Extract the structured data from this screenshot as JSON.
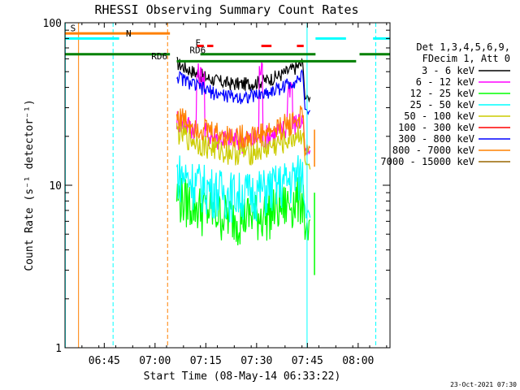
{
  "chart_data": {
    "type": "line",
    "title": "RHESSI Observing Summary Count Rates",
    "xlabel": "Start Time (08-May-14 06:33:22)",
    "ylabel": "Count Rate (s⁻¹ detector⁻¹)",
    "yscale": "log",
    "ylim": [
      1,
      100
    ],
    "xlim_minutes_from_0633": [
      0,
      96
    ],
    "x_ticks": [
      {
        "t": 11.6,
        "label": "06:45"
      },
      {
        "t": 26.6,
        "label": "07:00"
      },
      {
        "t": 41.6,
        "label": "07:15"
      },
      {
        "t": 56.6,
        "label": "07:30"
      },
      {
        "t": 71.6,
        "label": "07:45"
      },
      {
        "t": 86.6,
        "label": "08:00"
      }
    ],
    "y_ticks": [
      {
        "v": 1,
        "label": "1"
      },
      {
        "v": 10,
        "label": "10"
      },
      {
        "v": 100,
        "label": "100"
      }
    ],
    "legend_header": [
      "Det 1,3,4,5,6,9,",
      "FDecim 1, Att 0"
    ],
    "series": [
      {
        "name": "3 - 6 keV",
        "color": "#000000",
        "level": 42
      },
      {
        "name": "6 - 12 keV",
        "color": "#ff00ff",
        "level": 19
      },
      {
        "name": "12 - 25 keV",
        "color": "#00ff00",
        "level": 6.5
      },
      {
        "name": "25 - 50 keV",
        "color": "#00ffff",
        "level": 9
      },
      {
        "name": "50 - 100 keV",
        "color": "#cccc00",
        "level": 16
      },
      {
        "name": "100 - 300 keV",
        "color": "#ff0000",
        "level": 0
      },
      {
        "name": "300 - 800 keV",
        "color": "#0000ff",
        "level": 35
      },
      {
        "name": "800 - 7000 keV",
        "color": "#ff8000",
        "level": 20
      },
      {
        "name": "7000 - 15000 keV",
        "color": "#996600",
        "level": 0
      }
    ],
    "annotations": [
      {
        "label": "S",
        "color": "#ff8000"
      },
      {
        "label": "N",
        "color": "#00ffff"
      },
      {
        "label": "RD6",
        "color": "#008000"
      },
      {
        "label": "RD6",
        "color": "#008000"
      },
      {
        "label": "F",
        "color": "#ff0000"
      }
    ],
    "footer_date": "23-Oct-2021 07:30"
  }
}
